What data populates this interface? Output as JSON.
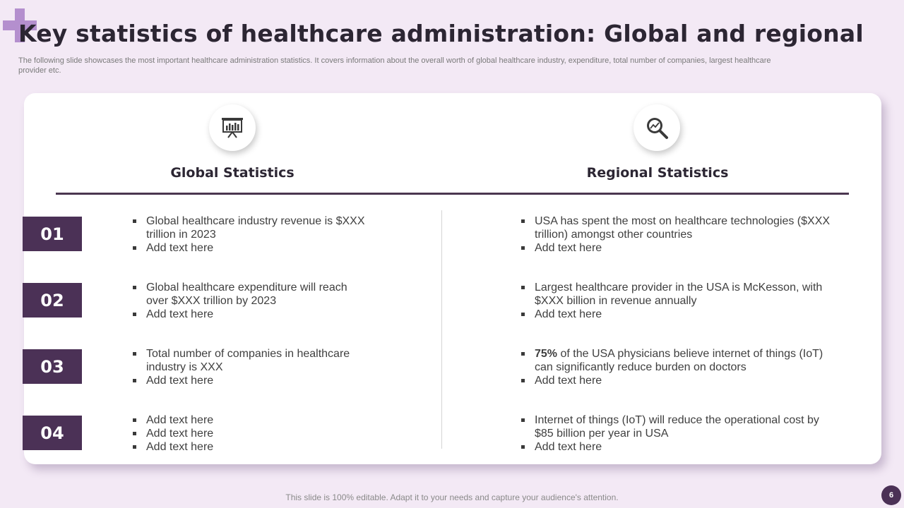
{
  "header": {
    "title": "Key statistics of healthcare administration: Global and regional",
    "subtitle": "The following slide showcases the most important healthcare administration statistics. It covers information about the overall worth of global healthcare industry, expenditure, total number of companies, largest healthcare provider etc."
  },
  "icons": {
    "global": "presentation-chart-icon",
    "regional": "magnifier-chart-icon"
  },
  "columns": {
    "global_heading": "Global Statistics",
    "regional_heading": "Regional Statistics"
  },
  "rows": [
    {
      "number": "01",
      "global": [
        "Global healthcare industry revenue is $XXX trillion  in 2023",
        "Add text here"
      ],
      "regional": [
        "USA has spent the most on healthcare technologies ($XXX trillion) amongst other countries",
        "Add text here"
      ]
    },
    {
      "number": "02",
      "global": [
        "Global healthcare expenditure will reach over $XXX trillion by 2023",
        "Add text here"
      ],
      "regional": [
        "Largest healthcare provider in the USA is McKesson, with $XXX billion in revenue annually",
        "Add text here"
      ]
    },
    {
      "number": "03",
      "global": [
        "Total number of companies in healthcare industry is XXX",
        "Add text here"
      ],
      "regional_highlight": "75%",
      "regional": [
        " of the USA physicians believe internet of things (IoT) can significantly reduce burden on doctors",
        "Add text here"
      ]
    },
    {
      "number": "04",
      "global": [
        "Add text here",
        "Add text here",
        "Add text here"
      ],
      "regional": [
        "Internet of things (IoT) will reduce the operational cost by $85 billion per year in USA",
        "Add text here"
      ]
    }
  ],
  "footer": {
    "note": "This slide is 100% editable. Adapt it to your needs and capture your audience's attention.",
    "page_number": "6"
  },
  "colors": {
    "background": "#f3e9f5",
    "accent": "#4b3156",
    "plus": "#b48fce"
  }
}
